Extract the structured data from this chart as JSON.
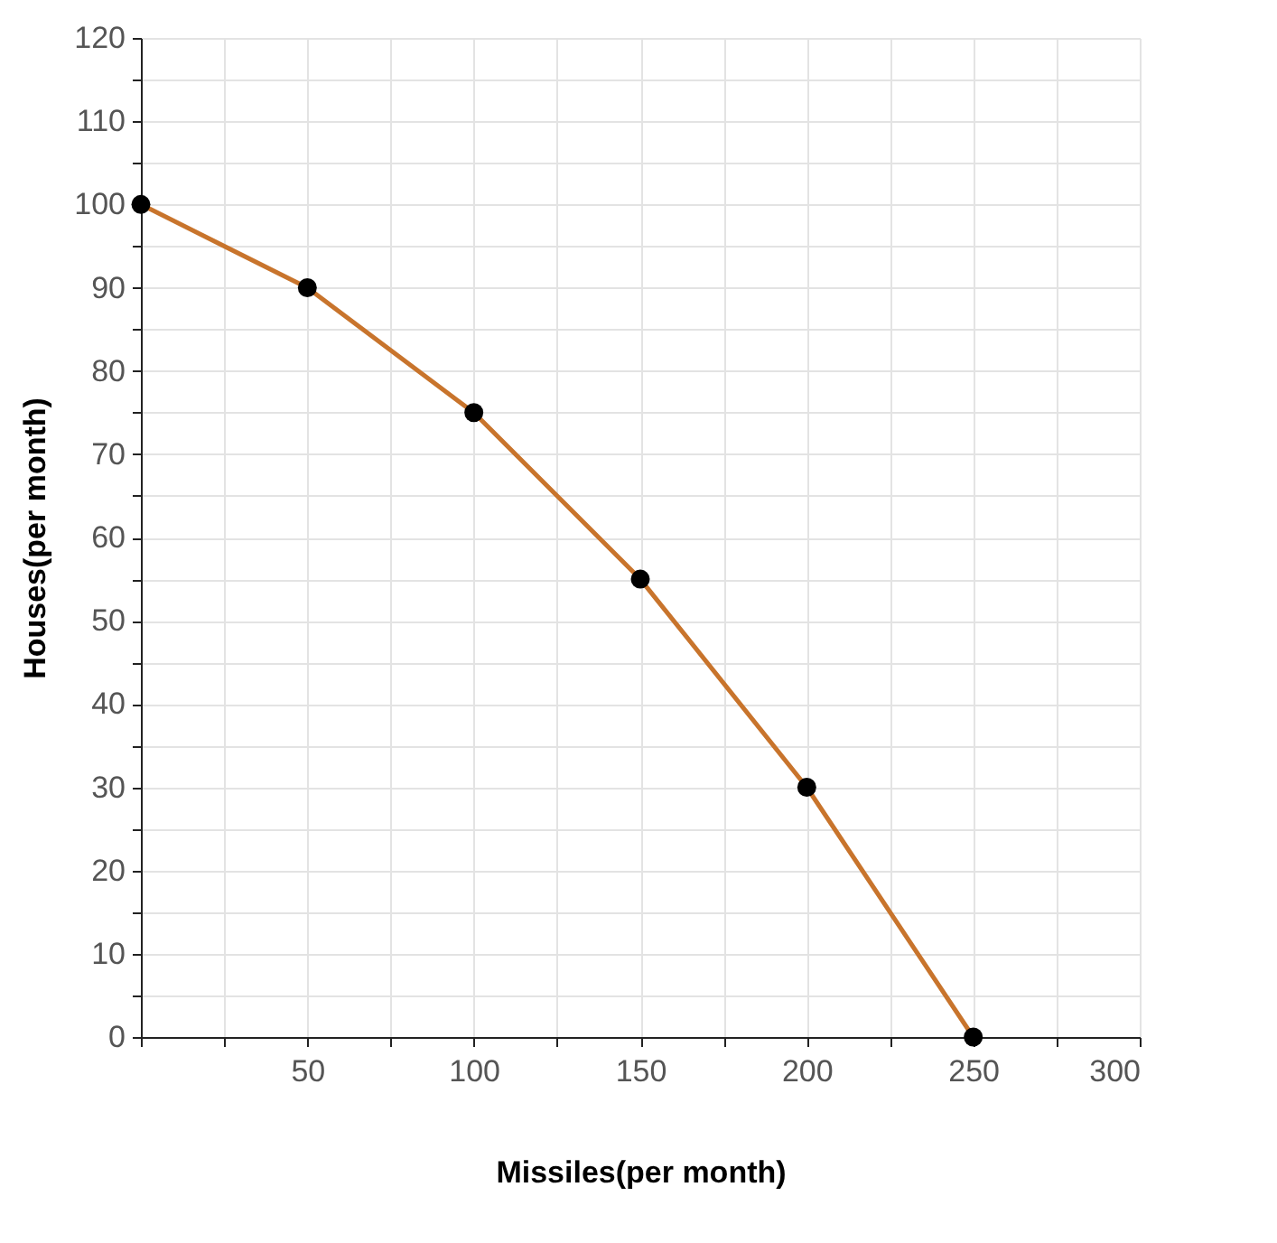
{
  "chart_data": {
    "type": "line",
    "xlabel": "Missiles(per month)",
    "ylabel": "Houses(per month)",
    "x": [
      0,
      50,
      100,
      150,
      200,
      250
    ],
    "series": [
      {
        "color": "#c8742c",
        "values": [
          100,
          90,
          75,
          55,
          30,
          0
        ]
      }
    ],
    "xlim": [
      0,
      300
    ],
    "ylim": [
      0,
      120
    ],
    "xticks": [
      {
        "value": 0,
        "label": null
      },
      {
        "value": 25,
        "label": null
      },
      50,
      {
        "value": 75,
        "label": null
      },
      100,
      {
        "value": 125,
        "label": null
      },
      150,
      {
        "value": 175,
        "label": null
      },
      200,
      {
        "value": 225,
        "label": null
      },
      250,
      {
        "value": 275,
        "label": null
      },
      300
    ],
    "yticks": [
      0,
      {
        "value": 5,
        "label": null
      },
      10,
      {
        "value": 15,
        "label": null
      },
      20,
      {
        "value": 25,
        "label": null
      },
      30,
      {
        "value": 35,
        "label": null
      },
      40,
      {
        "value": 45,
        "label": null
      },
      50,
      {
        "value": 55,
        "label": null
      },
      60,
      {
        "value": 65,
        "label": null
      },
      70,
      {
        "value": 75,
        "label": null
      },
      80,
      {
        "value": 85,
        "label": null
      },
      90,
      {
        "value": 95,
        "label": null
      },
      100,
      {
        "value": 105,
        "label": null
      },
      110,
      {
        "value": 115,
        "label": null
      },
      120
    ],
    "grid": true,
    "marker": "circle",
    "line_style": "solid"
  }
}
